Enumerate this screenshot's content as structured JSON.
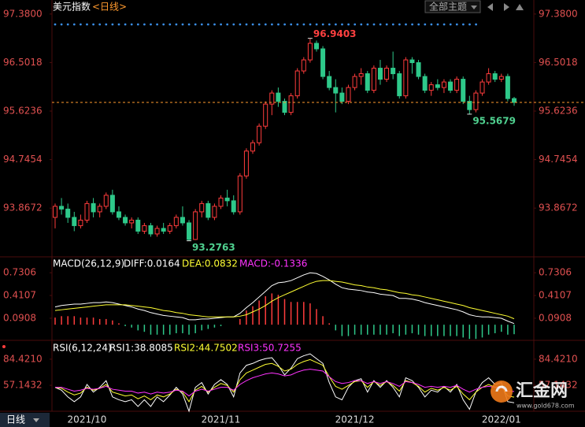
{
  "header": {
    "title": "美元指数",
    "period": "<日线>",
    "theme_menu": "全部主题"
  },
  "chart_data": [
    {
      "type": "candlestick",
      "candles": [
        [
          93.7,
          93.95,
          93.5,
          93.9
        ],
        [
          93.9,
          94.05,
          93.75,
          93.85
        ],
        [
          93.85,
          93.95,
          93.6,
          93.7
        ],
        [
          93.7,
          93.8,
          93.45,
          93.55
        ],
        [
          93.55,
          93.75,
          93.5,
          93.65
        ],
        [
          93.65,
          94.0,
          93.6,
          93.95
        ],
        [
          93.95,
          94.05,
          93.7,
          93.8
        ],
        [
          93.8,
          93.95,
          93.7,
          93.9
        ],
        [
          93.9,
          94.15,
          93.85,
          94.1
        ],
        [
          94.1,
          94.2,
          93.75,
          93.8
        ],
        [
          93.8,
          93.9,
          93.65,
          93.7
        ],
        [
          93.7,
          93.75,
          93.55,
          93.6
        ],
        [
          93.6,
          93.7,
          93.5,
          93.65
        ],
        [
          93.65,
          93.7,
          93.4,
          93.45
        ],
        [
          93.45,
          93.6,
          93.4,
          93.55
        ],
        [
          93.55,
          93.6,
          93.35,
          93.4
        ],
        [
          93.4,
          93.55,
          93.35,
          93.5
        ],
        [
          93.5,
          93.6,
          93.4,
          93.45
        ],
        [
          93.45,
          93.6,
          93.4,
          93.55
        ],
        [
          93.55,
          93.75,
          93.5,
          93.7
        ],
        [
          93.7,
          93.9,
          93.55,
          93.6
        ],
        [
          93.6,
          93.65,
          93.2763,
          93.3
        ],
        [
          93.3,
          93.85,
          93.29,
          93.8
        ],
        [
          93.8,
          94.0,
          93.7,
          93.95
        ],
        [
          93.95,
          94.0,
          93.65,
          93.7
        ],
        [
          93.7,
          93.95,
          93.65,
          93.9
        ],
        [
          93.9,
          94.1,
          93.85,
          94.05
        ],
        [
          94.05,
          94.2,
          93.9,
          94.0
        ],
        [
          94.0,
          94.1,
          93.75,
          93.8
        ],
        [
          93.8,
          94.5,
          93.75,
          94.45
        ],
        [
          94.45,
          94.95,
          94.4,
          94.9
        ],
        [
          94.9,
          95.1,
          94.85,
          95.05
        ],
        [
          95.05,
          95.4,
          95.0,
          95.35
        ],
        [
          95.35,
          95.8,
          95.3,
          95.75
        ],
        [
          95.75,
          96.0,
          95.55,
          95.95
        ],
        [
          95.95,
          96.05,
          95.7,
          95.8
        ],
        [
          95.8,
          95.85,
          95.55,
          95.6
        ],
        [
          95.6,
          95.95,
          95.55,
          95.9
        ],
        [
          95.9,
          96.4,
          95.85,
          96.35
        ],
        [
          96.35,
          96.6,
          96.3,
          96.55
        ],
        [
          96.55,
          96.9403,
          96.5,
          96.85
        ],
        [
          96.85,
          96.9,
          96.7,
          96.75
        ],
        [
          96.75,
          96.8,
          96.2,
          96.25
        ],
        [
          96.25,
          96.35,
          96.0,
          96.05
        ],
        [
          96.05,
          96.2,
          95.6,
          95.95
        ],
        [
          95.95,
          96.05,
          95.75,
          95.8
        ],
        [
          95.8,
          96.1,
          95.75,
          96.05
        ],
        [
          96.05,
          96.3,
          96.0,
          96.25
        ],
        [
          96.25,
          96.4,
          96.1,
          96.3
        ],
        [
          96.3,
          96.35,
          95.95,
          96.0
        ],
        [
          96.0,
          96.45,
          95.95,
          96.4
        ],
        [
          96.4,
          96.55,
          96.1,
          96.2
        ],
        [
          96.2,
          96.45,
          96.15,
          96.4
        ],
        [
          96.4,
          96.7,
          96.2,
          96.3
        ],
        [
          96.3,
          96.35,
          95.85,
          95.9
        ],
        [
          95.9,
          96.6,
          95.85,
          96.55
        ],
        [
          96.55,
          96.6,
          96.3,
          96.5
        ],
        [
          96.5,
          96.55,
          96.2,
          96.25
        ],
        [
          96.25,
          96.3,
          95.95,
          96.0
        ],
        [
          96.0,
          96.15,
          95.9,
          96.1
        ],
        [
          96.1,
          96.2,
          96.0,
          96.05
        ],
        [
          96.05,
          96.2,
          95.95,
          96.15
        ],
        [
          96.15,
          96.2,
          95.95,
          96.0
        ],
        [
          96.0,
          96.25,
          95.95,
          96.2
        ],
        [
          96.2,
          96.25,
          95.75,
          95.8
        ],
        [
          95.8,
          95.9,
          95.5679,
          95.65
        ],
        [
          95.65,
          96.0,
          95.6,
          95.95
        ],
        [
          95.95,
          96.2,
          95.9,
          96.15
        ],
        [
          96.15,
          96.4,
          96.1,
          96.3
        ],
        [
          96.3,
          96.35,
          96.15,
          96.2
        ],
        [
          96.2,
          96.3,
          96.15,
          96.25
        ],
        [
          96.25,
          96.3,
          95.8,
          95.85
        ],
        [
          95.85,
          95.88,
          95.72,
          95.78
        ]
      ],
      "categories": [
        null,
        null,
        null,
        null,
        null,
        "2021/10",
        null,
        null,
        null,
        null,
        null,
        null,
        null,
        null,
        null,
        null,
        null,
        null,
        null,
        null,
        null,
        null,
        null,
        null,
        null,
        null,
        "2021/11",
        null,
        null,
        null,
        null,
        null,
        null,
        null,
        null,
        null,
        null,
        null,
        null,
        null,
        null,
        null,
        null,
        null,
        null,
        null,
        null,
        "2021/12",
        null,
        null,
        null,
        null,
        null,
        null,
        null,
        null,
        null,
        null,
        null,
        null,
        null,
        null,
        null,
        null,
        null,
        null,
        null,
        null,
        null,
        null,
        "2022/01",
        null,
        null
      ],
      "ylim": [
        93.0,
        97.52
      ],
      "yticks": [
        {
          "value": 97.38,
          "label": "97.3800"
        },
        96.5018,
        95.6236,
        94.7454,
        93.8672
      ],
      "up_color": "#ff3c3c",
      "down_color": "#2ec98a",
      "annotations": [
        96.9403,
        93.2763,
        95.5679
      ],
      "last_price_line": true,
      "last_price_color": "#ff9a2e"
    },
    {
      "type": "macd",
      "title": "MACD(26,12,9)",
      "ylim": [
        -0.22,
        0.91
      ],
      "yticks": [
        0.7306,
        0.4107,
        0.0908
      ],
      "series": [
        {
          "label": "DIFF:0.0164",
          "color": "#ffffff",
          "values": [
            0.25,
            0.27,
            0.28,
            0.29,
            0.29,
            0.3,
            0.31,
            0.31,
            0.32,
            0.31,
            0.29,
            0.27,
            0.25,
            0.22,
            0.2,
            0.17,
            0.15,
            0.13,
            0.12,
            0.11,
            0.1,
            0.07,
            0.07,
            0.08,
            0.08,
            0.09,
            0.1,
            0.11,
            0.11,
            0.16,
            0.24,
            0.31,
            0.39,
            0.47,
            0.55,
            0.59,
            0.6,
            0.62,
            0.66,
            0.7,
            0.73,
            0.72,
            0.68,
            0.63,
            0.57,
            0.52,
            0.5,
            0.49,
            0.48,
            0.46,
            0.45,
            0.43,
            0.42,
            0.41,
            0.37,
            0.37,
            0.36,
            0.34,
            0.31,
            0.29,
            0.27,
            0.25,
            0.23,
            0.21,
            0.18,
            0.14,
            0.12,
            0.11,
            0.11,
            0.1,
            0.09,
            0.05,
            0.0164
          ]
        },
        {
          "label": "DEA:0.0832",
          "color": "#ffff33",
          "values": [
            0.2,
            0.21,
            0.22,
            0.23,
            0.24,
            0.25,
            0.26,
            0.27,
            0.28,
            0.28,
            0.28,
            0.28,
            0.27,
            0.26,
            0.25,
            0.24,
            0.22,
            0.2,
            0.19,
            0.17,
            0.16,
            0.14,
            0.13,
            0.12,
            0.11,
            0.11,
            0.11,
            0.11,
            0.11,
            0.12,
            0.14,
            0.18,
            0.22,
            0.27,
            0.33,
            0.38,
            0.42,
            0.46,
            0.5,
            0.54,
            0.58,
            0.61,
            0.62,
            0.62,
            0.61,
            0.6,
            0.58,
            0.56,
            0.55,
            0.53,
            0.52,
            0.5,
            0.49,
            0.47,
            0.45,
            0.44,
            0.42,
            0.41,
            0.39,
            0.37,
            0.35,
            0.33,
            0.31,
            0.29,
            0.27,
            0.24,
            0.22,
            0.2,
            0.18,
            0.16,
            0.14,
            0.12,
            0.0832
          ]
        }
      ],
      "histogram": {
        "label": "MACD:-0.1336",
        "label_color": "#ff33ff",
        "up_color": "#ff3c3c",
        "down_color": "#2ec98a",
        "values": [
          0.1,
          0.12,
          0.12,
          0.12,
          0.1,
          0.1,
          0.1,
          0.08,
          0.08,
          0.06,
          0.02,
          -0.02,
          -0.04,
          -0.08,
          -0.1,
          -0.14,
          -0.14,
          -0.14,
          -0.14,
          -0.12,
          -0.12,
          -0.14,
          -0.12,
          -0.08,
          -0.06,
          -0.04,
          -0.02,
          0,
          0,
          0.08,
          0.2,
          0.26,
          0.34,
          0.4,
          0.44,
          0.42,
          0.36,
          0.32,
          0.32,
          0.32,
          0.3,
          0.22,
          0.12,
          0.02,
          -0.08,
          -0.16,
          -0.16,
          -0.14,
          -0.14,
          -0.14,
          -0.14,
          -0.14,
          -0.14,
          -0.12,
          -0.16,
          -0.14,
          -0.12,
          -0.14,
          -0.16,
          -0.16,
          -0.16,
          -0.16,
          -0.16,
          -0.16,
          -0.18,
          -0.2,
          -0.2,
          -0.18,
          -0.14,
          -0.12,
          -0.1,
          -0.14,
          -0.1336
        ]
      }
    },
    {
      "type": "rsi",
      "title": "RSI(6,12,24)",
      "ylim": [
        30,
        100
      ],
      "yticks": [
        {
          "value": 84.421,
          "label": "84.4210"
        },
        57.1432
      ],
      "series": [
        {
          "label": "RSI1:38.8085",
          "color": "#ffffff",
          "values": [
            55,
            52,
            45,
            40,
            45,
            58,
            50,
            55,
            62,
            45,
            42,
            40,
            42,
            35,
            42,
            35,
            45,
            40,
            47,
            55,
            48,
            30,
            55,
            60,
            48,
            58,
            63,
            58,
            45,
            70,
            78,
            80,
            83,
            85,
            86,
            78,
            68,
            75,
            85,
            88,
            90,
            85,
            80,
            60,
            45,
            42,
            55,
            62,
            64,
            50,
            62,
            55,
            62,
            55,
            45,
            65,
            62,
            55,
            45,
            52,
            50,
            56,
            50,
            58,
            42,
            32,
            50,
            60,
            65,
            58,
            60,
            40,
            38.8085
          ]
        },
        {
          "label": "RSI2:44.7502",
          "color": "#ffff33",
          "values": [
            55,
            54,
            50,
            47,
            49,
            55,
            52,
            54,
            58,
            50,
            48,
            46,
            47,
            43,
            46,
            42,
            47,
            45,
            48,
            53,
            50,
            40,
            52,
            56,
            50,
            55,
            59,
            57,
            50,
            63,
            70,
            73,
            76,
            79,
            80,
            77,
            72,
            74,
            79,
            82,
            84,
            81,
            78,
            66,
            56,
            53,
            57,
            61,
            62,
            55,
            61,
            57,
            61,
            57,
            51,
            62,
            60,
            56,
            50,
            54,
            52,
            55,
            52,
            56,
            48,
            42,
            50,
            55,
            58,
            55,
            56,
            46,
            44.7502
          ]
        },
        {
          "label": "RSI3:50.7255",
          "color": "#ff33ff",
          "values": [
            55,
            55,
            53,
            51,
            52,
            54,
            53,
            54,
            56,
            53,
            52,
            51,
            51,
            49,
            50,
            48,
            50,
            49,
            50,
            52,
            51,
            46,
            51,
            53,
            51,
            53,
            55,
            55,
            52,
            58,
            62,
            65,
            67,
            69,
            70,
            69,
            67,
            68,
            71,
            73,
            74,
            73,
            72,
            66,
            61,
            59,
            60,
            62,
            62,
            59,
            61,
            59,
            61,
            59,
            56,
            61,
            60,
            58,
            55,
            56,
            55,
            56,
            55,
            57,
            53,
            50,
            53,
            55,
            56,
            55,
            55,
            51,
            50.7255
          ]
        }
      ]
    }
  ],
  "footer": {
    "period_button": "日线"
  },
  "watermark": {
    "brand": "汇金网",
    "url": "www.gold678.com"
  }
}
